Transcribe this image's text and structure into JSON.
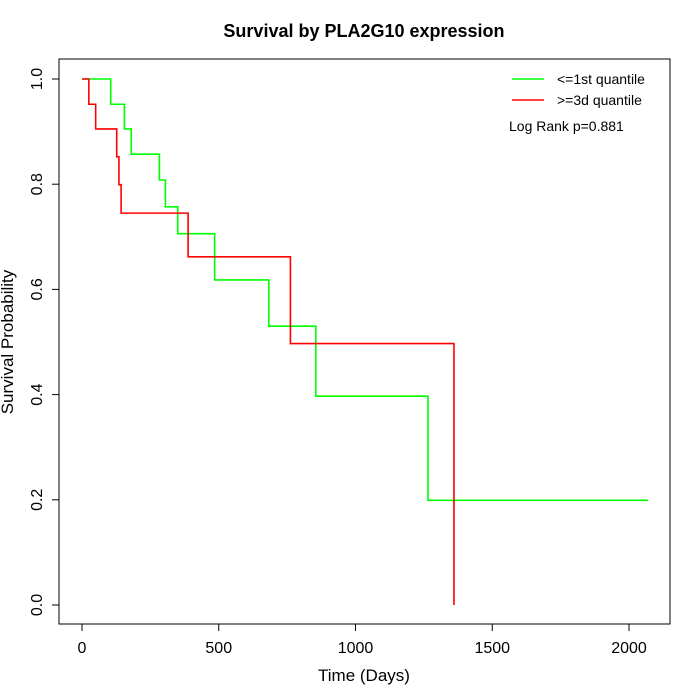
{
  "chart_data": {
    "type": "line",
    "title": "Survival by PLA2G10 expression",
    "xlabel": "Time (Days)",
    "ylabel": "Survival Probability",
    "xlim": [
      0,
      2070
    ],
    "ylim": [
      0,
      1.0
    ],
    "x_ticks": [
      0,
      500,
      1000,
      1500,
      2000
    ],
    "y_ticks": [
      0.0,
      0.2,
      0.4,
      0.6,
      0.8,
      1.0
    ],
    "x_tick_labels": [
      "0",
      "500",
      "1000",
      "1500",
      "2000"
    ],
    "y_tick_labels": [
      "0.0",
      "0.2",
      "0.4",
      "0.6",
      "0.8",
      "1.0"
    ],
    "grid": false,
    "legend_position": "top-right",
    "annotation": "Log Rank p=0.881",
    "series": [
      {
        "name": "<=1st quantile",
        "color": "#00ff00",
        "step": true,
        "x": [
          0,
          105,
          155,
          180,
          283,
          305,
          350,
          485,
          683,
          855,
          1265,
          2070
        ],
        "y": [
          1.0,
          0.952,
          0.905,
          0.857,
          0.808,
          0.757,
          0.706,
          0.618,
          0.53,
          0.397,
          0.199,
          0.199
        ]
      },
      {
        "name": ">=3d quantile",
        "color": "#ff0000",
        "step": true,
        "x": [
          0,
          25,
          50,
          127,
          135,
          143,
          388,
          762,
          1360,
          1360
        ],
        "y": [
          1.0,
          0.952,
          0.905,
          0.852,
          0.799,
          0.745,
          0.662,
          0.497,
          0.497,
          0.0
        ]
      }
    ]
  }
}
